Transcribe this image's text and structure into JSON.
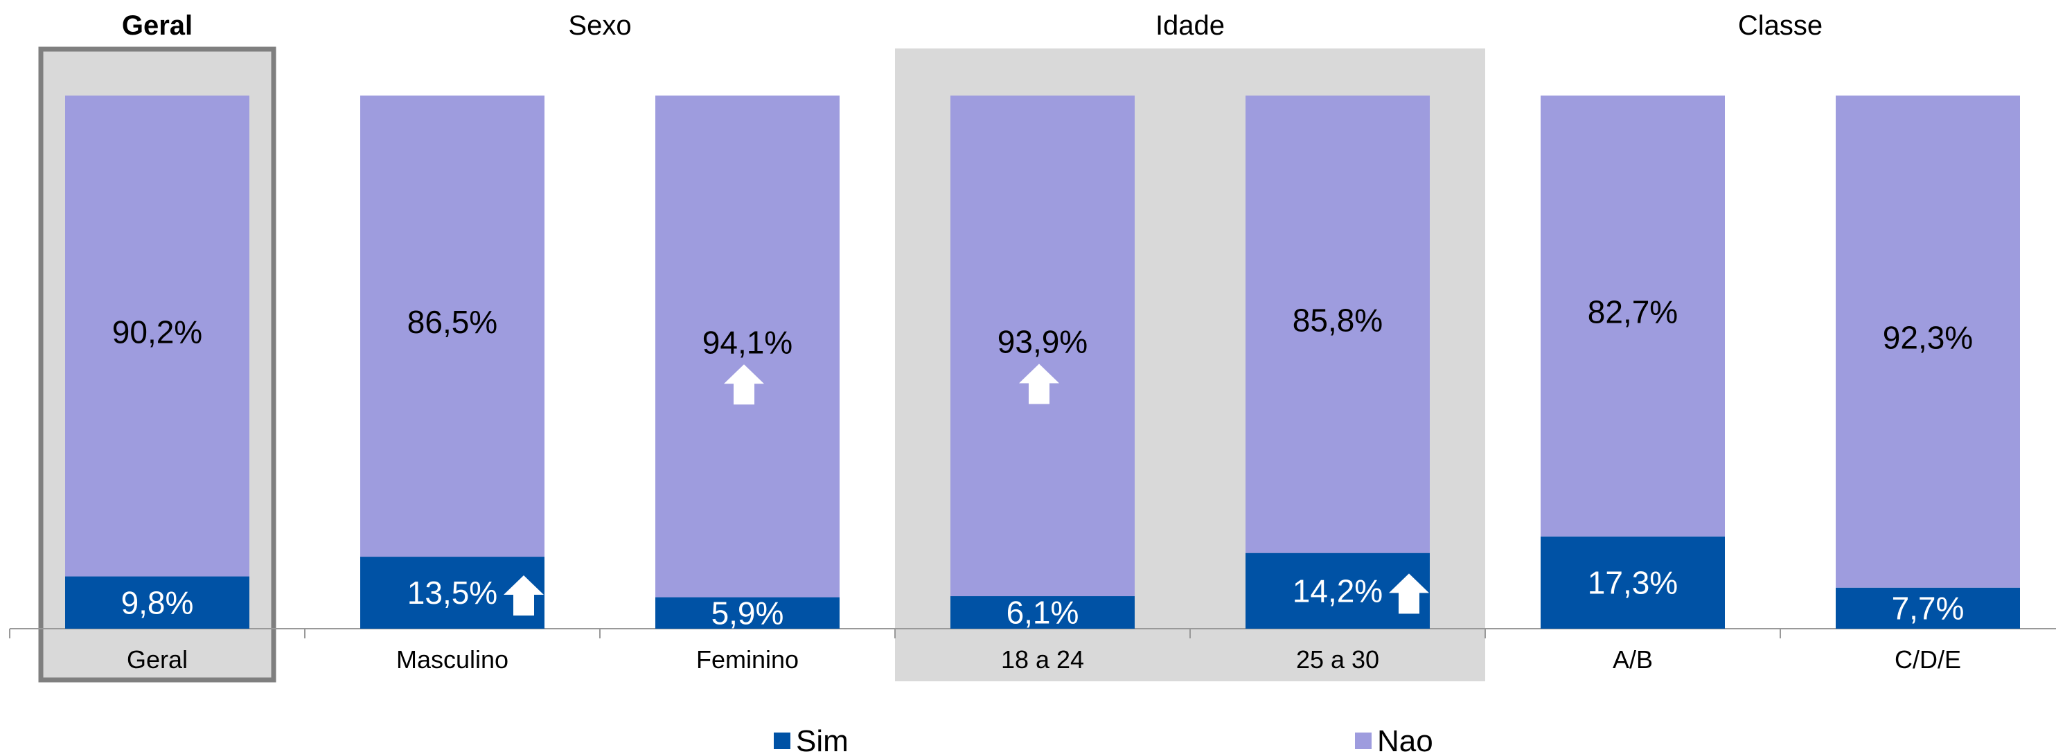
{
  "chart_data": {
    "type": "bar",
    "stacked": true,
    "percent": true,
    "groups": [
      {
        "title": "Geral",
        "categories": [
          "Geral"
        ],
        "highlight": "outline"
      },
      {
        "title": "Sexo",
        "categories": [
          "Masculino",
          "Feminino"
        ],
        "highlight": "none"
      },
      {
        "title": "Idade",
        "categories": [
          "18 a 24",
          "25 a 30"
        ],
        "highlight": "shaded"
      },
      {
        "title": "Classe",
        "categories": [
          "A/B",
          "C/D/E"
        ],
        "highlight": "none"
      }
    ],
    "categories": [
      "Geral",
      "Masculino",
      "Feminino",
      "18 a 24",
      "25 a 30",
      "A/B",
      "C/D/E"
    ],
    "series": [
      {
        "name": "Sim",
        "color": "#0052A5",
        "values": [
          9.8,
          13.5,
          5.9,
          6.1,
          14.2,
          17.3,
          7.7
        ],
        "labels": [
          "9,8%",
          "13,5%",
          "5,9%",
          "6,1%",
          "14,2%",
          "17,3%",
          "7,7%"
        ]
      },
      {
        "name": "Nao",
        "color": "#9E9CDE",
        "values": [
          90.2,
          86.5,
          94.1,
          93.9,
          85.8,
          82.7,
          92.3
        ],
        "labels": [
          "90,2%",
          "86,5%",
          "94,1%",
          "93,9%",
          "85,8%",
          "82,7%",
          "92,3%"
        ]
      }
    ],
    "indicators": [
      {
        "category": "Masculino",
        "series": "Sim",
        "direction": "up"
      },
      {
        "category": "Feminino",
        "series": "Nao",
        "direction": "up"
      },
      {
        "category": "18 a 24",
        "series": "Nao",
        "direction": "up"
      },
      {
        "category": "25 a 30",
        "series": "Sim",
        "direction": "up"
      }
    ],
    "legend_position": "bottom",
    "ylim": [
      0,
      100
    ],
    "grid": false
  }
}
